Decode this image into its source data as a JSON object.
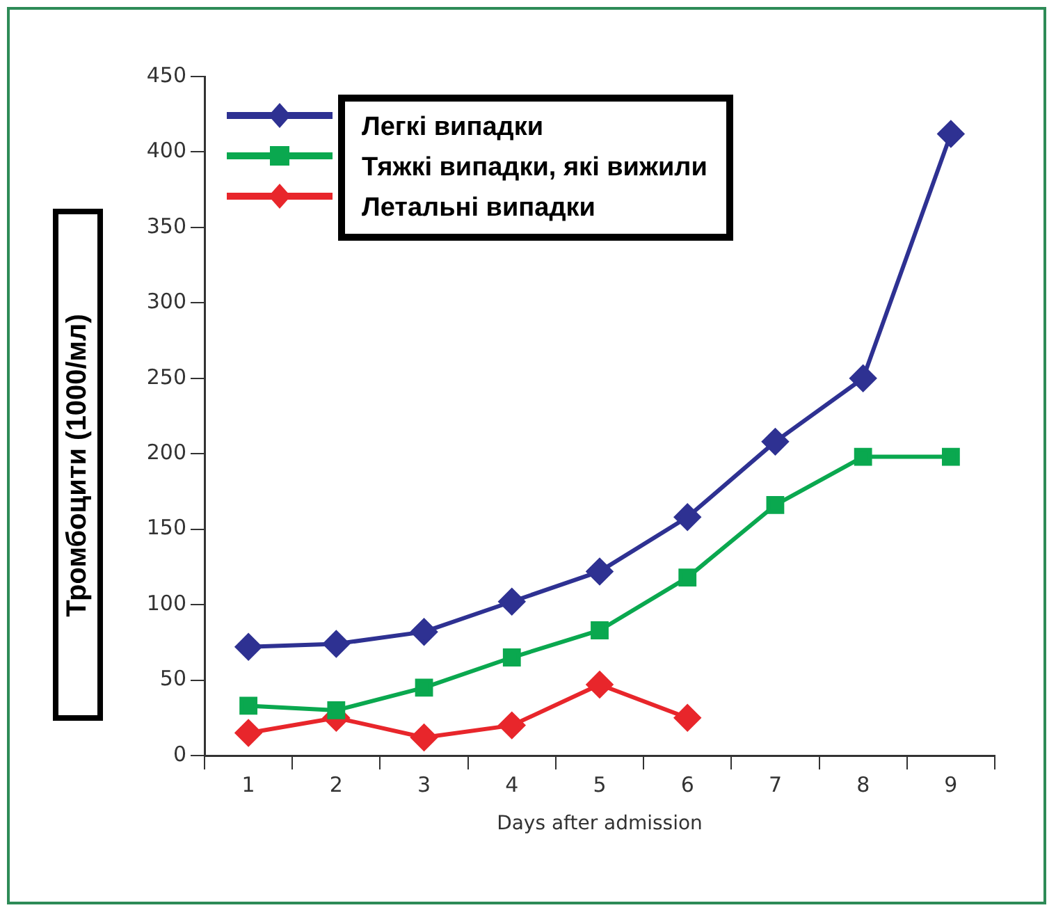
{
  "chart_data": {
    "type": "line",
    "xlabel": "Days after admission",
    "ylabel": "Тромбоцити (1000/мл)",
    "categories": [
      "1",
      "2",
      "3",
      "4",
      "5",
      "6",
      "7",
      "8",
      "9"
    ],
    "ylim": [
      0,
      450
    ],
    "yticks": [
      0,
      50,
      100,
      150,
      200,
      250,
      300,
      350,
      400,
      450
    ],
    "grid": false,
    "legend": "top left",
    "line_style": "solid",
    "series": [
      {
        "name": "Легкі випадки",
        "color": "#2e3192",
        "marker": "diamond",
        "values": [
          72,
          74,
          82,
          102,
          122,
          158,
          208,
          250,
          412
        ]
      },
      {
        "name": "Тяжкі випадки, які вижили",
        "color": "#0aa84f",
        "marker": "square",
        "values": [
          33,
          30,
          45,
          65,
          83,
          118,
          166,
          198,
          198
        ]
      },
      {
        "name": "Летальні випадки",
        "color": "#e8262b",
        "marker": "diamond",
        "values": [
          15,
          25,
          12,
          20,
          47,
          25,
          null,
          null,
          null
        ]
      }
    ]
  }
}
